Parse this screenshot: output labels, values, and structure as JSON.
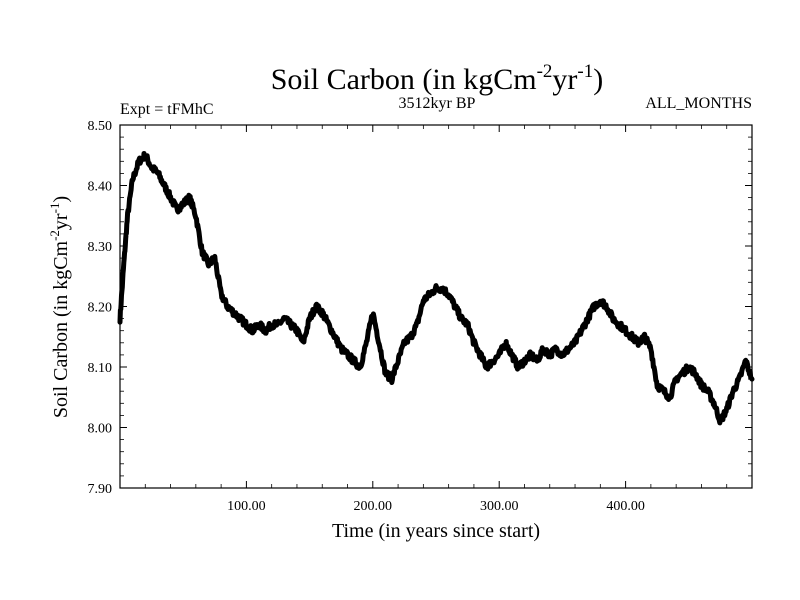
{
  "chart_data": {
    "type": "line",
    "title": "Soil Carbon (in kgCm",
    "title_sup1": "-2",
    "title_mid": "yr",
    "title_sup2": "-1",
    "title_end": ")",
    "subtitle_left": "Expt = tFMhC",
    "subtitle_center": "3512kyr BP",
    "subtitle_right": "ALL_MONTHS",
    "xlabel": "Time (in years since start)",
    "ylabel": "Soil Carbon (in kgCm",
    "ylabel_sup1": "-2",
    "ylabel_mid": "yr",
    "ylabel_sup2": "-1",
    "ylabel_end": ")",
    "xlim": [
      0,
      500
    ],
    "ylim": [
      7.9,
      8.5
    ],
    "xticks": [
      100,
      200,
      300,
      400
    ],
    "xtick_labels": [
      "100.00",
      "200.00",
      "300.00",
      "400.00"
    ],
    "yticks": [
      7.9,
      8.0,
      8.1,
      8.2,
      8.3,
      8.4,
      8.5
    ],
    "ytick_labels": [
      "7.90",
      "8.00",
      "8.10",
      "8.20",
      "8.30",
      "8.40",
      "8.50"
    ],
    "series": [
      {
        "name": "Soil Carbon",
        "color": "#000000",
        "x": [
          0,
          3,
          6,
          10,
          15,
          20,
          25,
          30,
          35,
          40,
          45,
          50,
          55,
          60,
          65,
          70,
          75,
          80,
          85,
          90,
          95,
          100,
          105,
          110,
          115,
          120,
          125,
          130,
          135,
          140,
          145,
          150,
          155,
          160,
          165,
          170,
          175,
          180,
          185,
          190,
          195,
          200,
          205,
          210,
          215,
          220,
          225,
          230,
          235,
          240,
          245,
          250,
          255,
          260,
          265,
          270,
          275,
          280,
          285,
          290,
          295,
          300,
          305,
          310,
          315,
          320,
          325,
          330,
          335,
          340,
          345,
          350,
          355,
          360,
          365,
          370,
          375,
          380,
          385,
          390,
          395,
          400,
          405,
          410,
          415,
          420,
          425,
          430,
          435,
          440,
          445,
          450,
          455,
          460,
          465,
          470,
          475,
          480,
          485,
          490,
          495,
          500
        ],
        "y": [
          8.18,
          8.27,
          8.35,
          8.41,
          8.44,
          8.45,
          8.43,
          8.42,
          8.4,
          8.38,
          8.36,
          8.37,
          8.38,
          8.35,
          8.29,
          8.27,
          8.28,
          8.22,
          8.2,
          8.19,
          8.18,
          8.17,
          8.16,
          8.17,
          8.16,
          8.17,
          8.17,
          8.18,
          8.17,
          8.16,
          8.14,
          8.18,
          8.2,
          8.19,
          8.17,
          8.15,
          8.13,
          8.12,
          8.11,
          8.1,
          8.14,
          8.19,
          8.14,
          8.09,
          8.08,
          8.11,
          8.14,
          8.15,
          8.17,
          8.21,
          8.22,
          8.23,
          8.23,
          8.22,
          8.2,
          8.18,
          8.17,
          8.14,
          8.12,
          8.1,
          8.11,
          8.12,
          8.14,
          8.12,
          8.1,
          8.11,
          8.12,
          8.11,
          8.13,
          8.12,
          8.13,
          8.12,
          8.13,
          8.14,
          8.16,
          8.18,
          8.2,
          8.21,
          8.2,
          8.18,
          8.17,
          8.16,
          8.15,
          8.14,
          8.15,
          8.13,
          8.07,
          8.06,
          8.05,
          8.08,
          8.09,
          8.1,
          8.09,
          8.07,
          8.06,
          8.04,
          8.01,
          8.03,
          8.06,
          8.08,
          8.11,
          8.08
        ]
      }
    ]
  }
}
